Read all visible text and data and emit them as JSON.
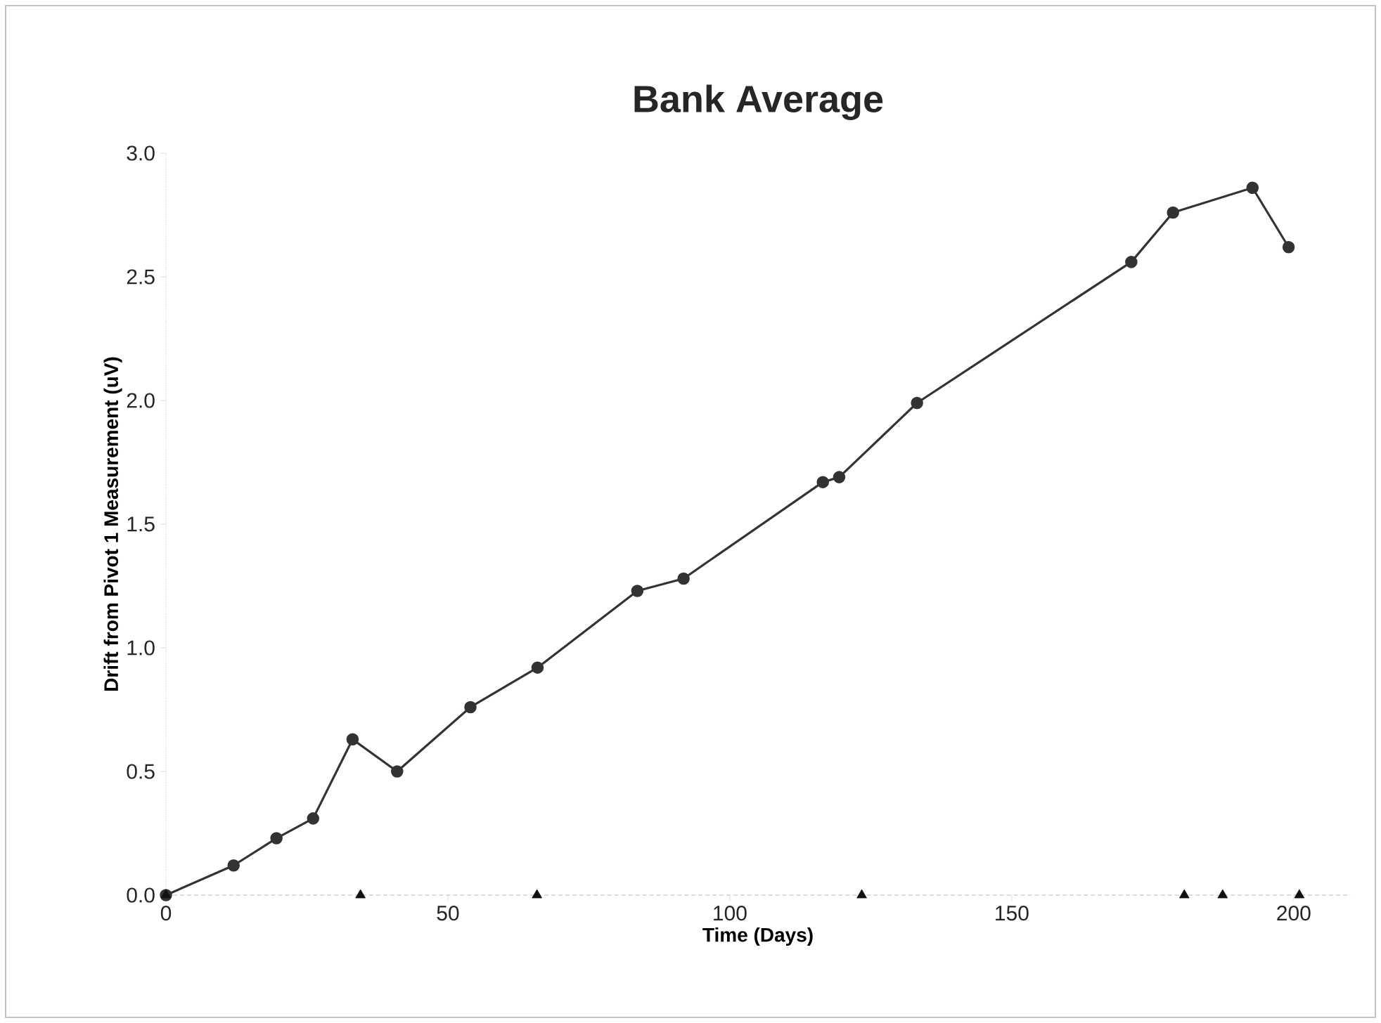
{
  "chart_data": {
    "type": "line",
    "title": "Bank Average",
    "xlabel": "Time (Days)",
    "ylabel": "Drift from Pivot 1 Measurement (uV)",
    "xlim": [
      0,
      210
    ],
    "xticks": [
      0,
      50,
      100,
      150,
      200
    ],
    "ylim": [
      0,
      3
    ],
    "yticks": [
      {
        "value": 0,
        "label": "0.0"
      },
      {
        "value": 0.5,
        "label": "0.5"
      },
      {
        "value": 1,
        "label": "1.0"
      },
      {
        "value": 1.5,
        "label": "1.5"
      },
      {
        "value": 2,
        "label": "2.0"
      },
      {
        "value": 2.5,
        "label": "2.5"
      },
      {
        "value": 3,
        "label": "3.0"
      }
    ],
    "grid": false,
    "marker": "circle",
    "line_style": "solid",
    "series": [
      {
        "color": "#333333",
        "x": [
          0,
          12,
          19.6,
          26.1,
          33.1,
          41,
          54,
          65.9,
          83.6,
          91.8,
          116.5,
          119.4,
          133.2,
          171.2,
          178.6,
          192.7,
          199.1
        ],
        "values": [
          0,
          0.12,
          0.23,
          0.31,
          0.63,
          0.5,
          0.76,
          0.92,
          1.23,
          1.28,
          1.67,
          1.69,
          1.99,
          2.56,
          2.76,
          2.86,
          2.62
        ]
      },
      {
        "type": "scatter",
        "marker": "triangle",
        "color": "#111111",
        "x": [
          0,
          34.5,
          65.8,
          123.4,
          180.6,
          187.4,
          201
        ],
        "values": [
          0,
          0,
          0,
          0,
          0,
          0,
          0
        ]
      }
    ]
  }
}
